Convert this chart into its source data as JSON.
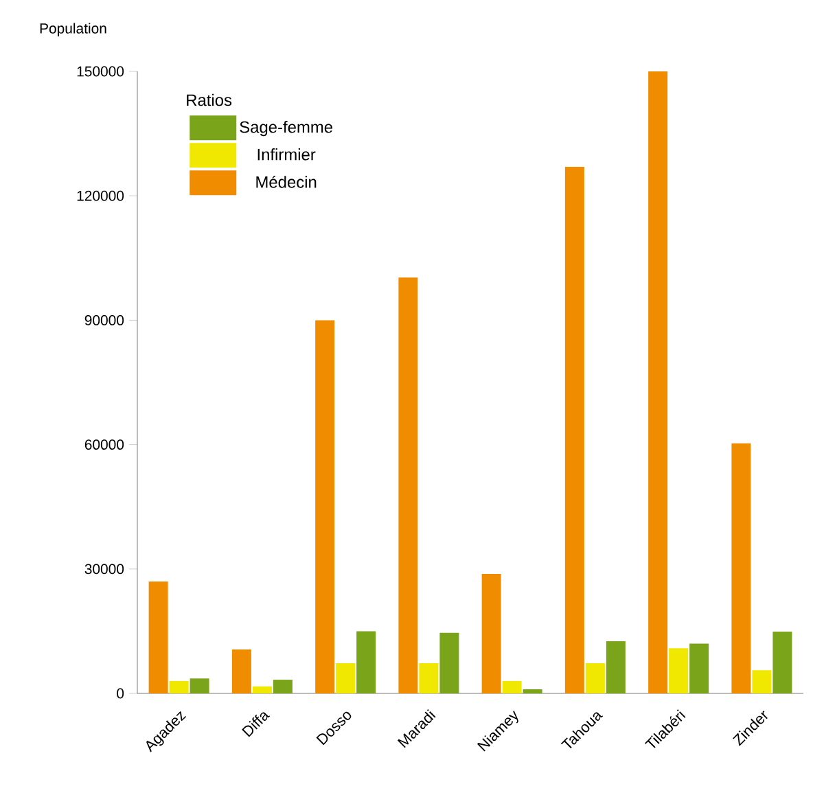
{
  "chart_data": {
    "type": "bar",
    "ylabel": "Population",
    "legend_title": "Ratios",
    "legend": "top left",
    "grid": false,
    "categories": [
      "Agadez",
      "Diffa",
      "Dosso",
      "Maradi",
      "Niamey",
      "Tahoua",
      "Tilabéri",
      "Zinder"
    ],
    "series": [
      {
        "name": "Médecin",
        "color": "#f08c00",
        "values": [
          27000,
          10600,
          90000,
          100300,
          28800,
          127000,
          150000,
          60300
        ]
      },
      {
        "name": "Infirmier",
        "color": "#f0e800",
        "values": [
          3000,
          1700,
          7300,
          7300,
          3000,
          7300,
          10900,
          5600
        ]
      },
      {
        "name": "Sage-femme",
        "color": "#7aa51a",
        "values": [
          3600,
          3300,
          15000,
          14600,
          1000,
          12600,
          12000,
          14900
        ]
      }
    ],
    "ylim": [
      0,
      150000
    ],
    "yticks": [
      0,
      30000,
      60000,
      90000,
      120000,
      150000
    ]
  }
}
